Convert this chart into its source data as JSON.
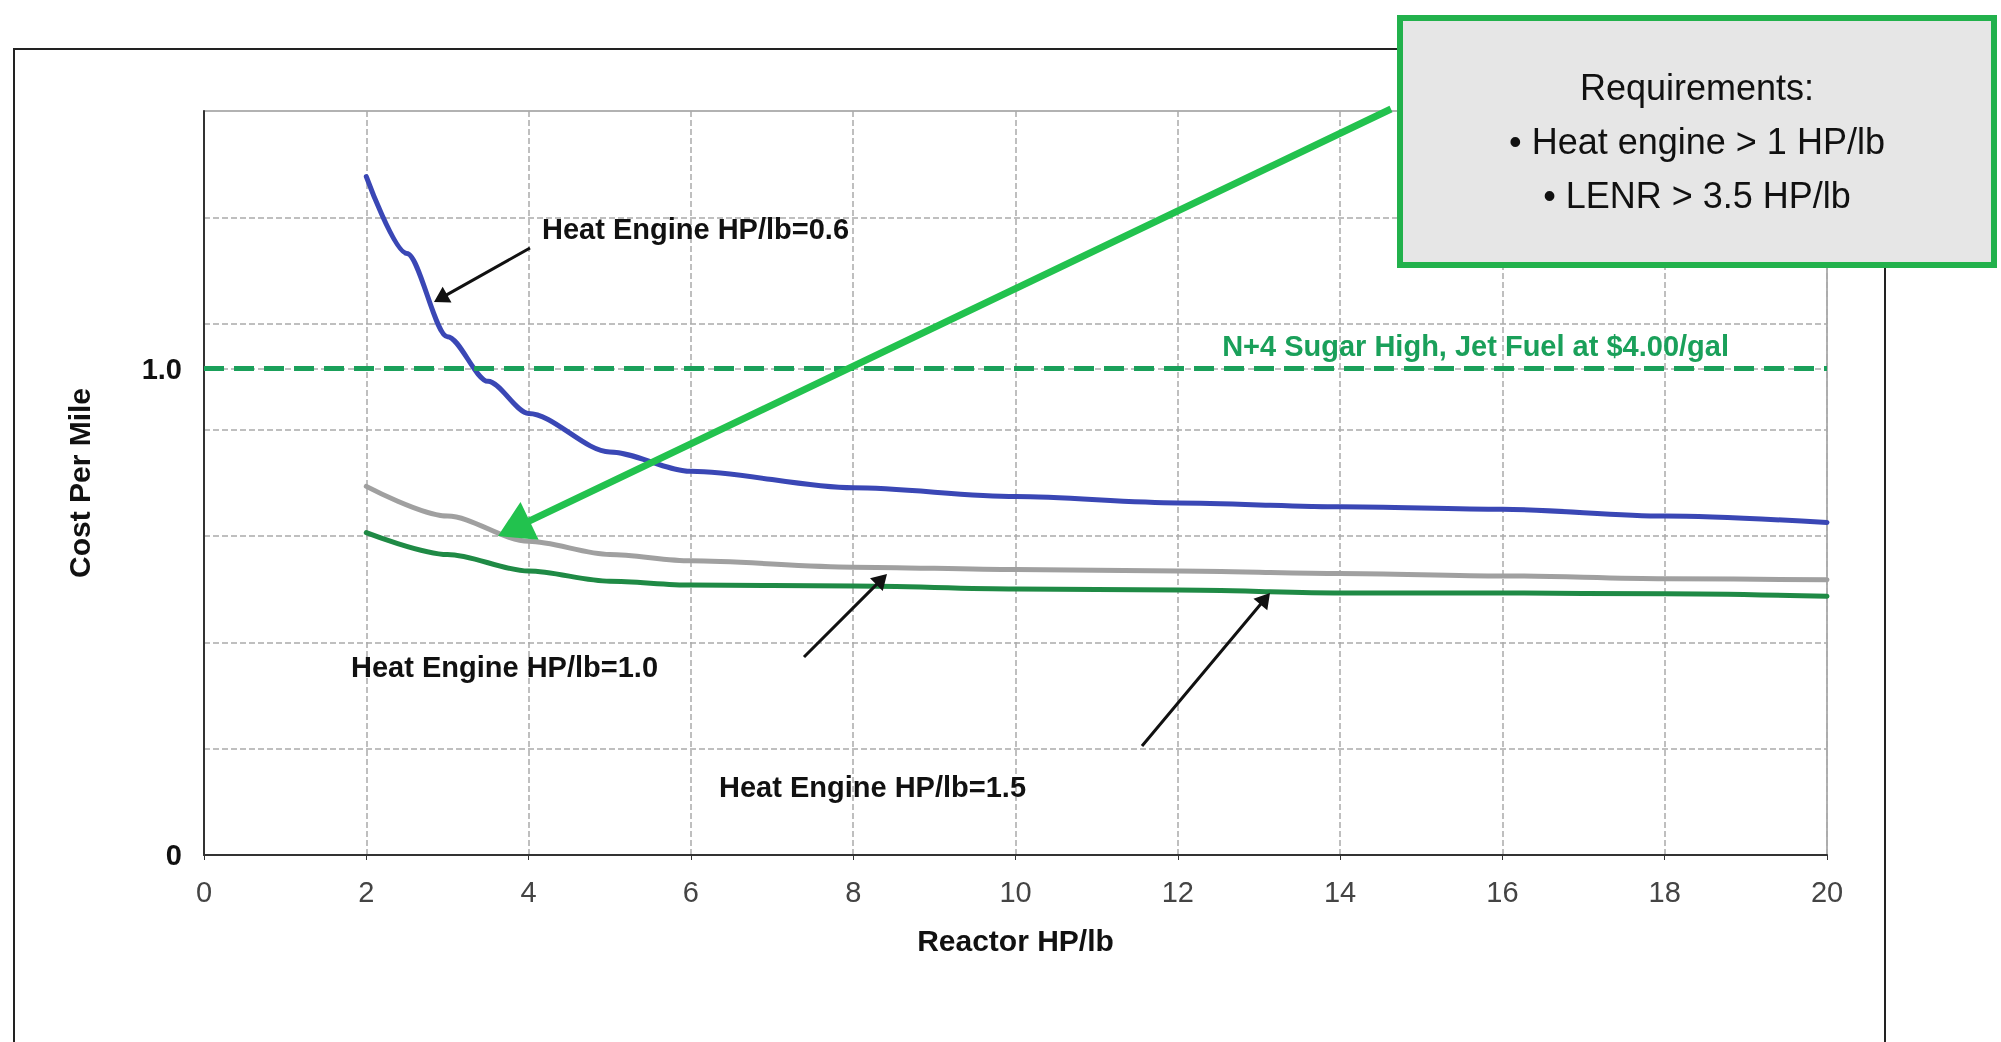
{
  "chart_data": {
    "type": "line",
    "xlabel": "Reactor HP/lb",
    "ylabel": "Cost Per Mile",
    "xlim": [
      0,
      20
    ],
    "xticks": [
      0,
      2,
      4,
      6,
      8,
      10,
      12,
      14,
      16,
      18,
      20
    ],
    "ylim": [
      0,
      1.53
    ],
    "yticks": [
      0,
      {
        "value": 0.219,
        "label": null
      },
      {
        "value": 0.437,
        "label": null
      },
      {
        "value": 0.656,
        "label": null
      },
      {
        "value": 0.874,
        "label": null
      },
      {
        "value": 1,
        "label": "1.0"
      },
      {
        "value": 1.093,
        "label": null
      },
      {
        "value": 1.311,
        "label": null
      }
    ],
    "grid": true,
    "line_style": "solid",
    "marker": "none",
    "series": [
      {
        "color": "#3a47b5",
        "x": [
          2,
          2.5,
          3,
          3.5,
          4,
          5,
          6,
          8,
          10,
          12,
          14,
          16,
          18,
          20
        ],
        "values": [
          1.395,
          1.237,
          1.066,
          0.974,
          0.908,
          0.829,
          0.789,
          0.755,
          0.737,
          0.724,
          0.716,
          0.711,
          0.697,
          0.684
        ]
      },
      {
        "color": "#a0a0a0",
        "x": [
          2,
          3,
          4,
          5,
          6,
          8,
          10,
          12,
          14,
          16,
          18,
          20
        ],
        "values": [
          0.758,
          0.697,
          0.645,
          0.618,
          0.605,
          0.592,
          0.587,
          0.584,
          0.579,
          0.574,
          0.568,
          0.566
        ]
      },
      {
        "color": "#1f8a45",
        "x": [
          2,
          3,
          4,
          5,
          6,
          8,
          10,
          12,
          14,
          16,
          18,
          20
        ],
        "values": [
          0.663,
          0.618,
          0.584,
          0.563,
          0.555,
          0.553,
          0.547,
          0.545,
          0.539,
          0.539,
          0.537,
          0.532
        ]
      }
    ],
    "ref_lines": [
      {
        "axis": "y",
        "value": 1,
        "label": "N+4 Sugar High, Jet Fuel at $4.00/gal",
        "color": "#1aa05a",
        "line_style": "dashed"
      }
    ],
    "annotations": [
      "Heat Engine HP/lb=0.6",
      "Heat Engine HP/lb=1.0",
      "Heat Engine HP/lb=1.5",
      "Requirements:\n• Heat engine > 1 HP/lb\n• LENR > 3.5 HP/lb"
    ]
  }
}
